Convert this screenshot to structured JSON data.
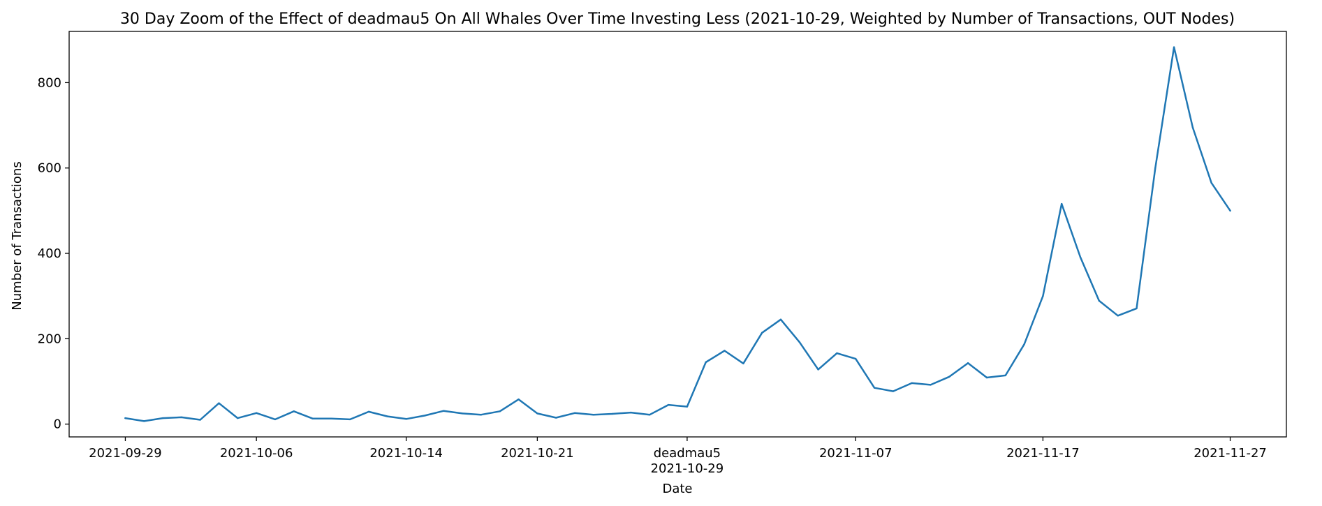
{
  "chart_data": {
    "type": "line",
    "title": "30 Day Zoom of the Effect of deadmau5 On All Whales Over Time Investing Less (2021-10-29, Weighted by Number of Transactions, OUT Nodes)",
    "xlabel": "Date",
    "ylabel": "Number of Transactions",
    "ylim": [
      -30,
      920
    ],
    "xlim": [
      "2021-09-26",
      "2021-11-30"
    ],
    "grid": false,
    "line_color": "#1f77b4",
    "x_ticks": [
      {
        "date": "2021-09-29",
        "label": "2021-09-29"
      },
      {
        "date": "2021-10-06",
        "label": "2021-10-06"
      },
      {
        "date": "2021-10-14",
        "label": "2021-10-14"
      },
      {
        "date": "2021-10-21",
        "label": "2021-10-21"
      },
      {
        "date": "2021-10-29",
        "label": "2021-10-29",
        "extra_label": "deadmau5"
      },
      {
        "date": "2021-11-07",
        "label": "2021-11-07"
      },
      {
        "date": "2021-11-17",
        "label": "2021-11-17"
      },
      {
        "date": "2021-11-27",
        "label": "2021-11-27"
      }
    ],
    "y_ticks": [
      0,
      200,
      400,
      600,
      800
    ],
    "series": [
      {
        "x": [
          "2021-09-29",
          "2021-09-30",
          "2021-10-01",
          "2021-10-02",
          "2021-10-03",
          "2021-10-04",
          "2021-10-05",
          "2021-10-06",
          "2021-10-07",
          "2021-10-08",
          "2021-10-09",
          "2021-10-10",
          "2021-10-11",
          "2021-10-12",
          "2021-10-13",
          "2021-10-14",
          "2021-10-15",
          "2021-10-16",
          "2021-10-17",
          "2021-10-18",
          "2021-10-19",
          "2021-10-20",
          "2021-10-21",
          "2021-10-22",
          "2021-10-23",
          "2021-10-24",
          "2021-10-25",
          "2021-10-26",
          "2021-10-27",
          "2021-10-28",
          "2021-10-29",
          "2021-10-30",
          "2021-10-31",
          "2021-11-01",
          "2021-11-02",
          "2021-11-03",
          "2021-11-04",
          "2021-11-05",
          "2021-11-06",
          "2021-11-07",
          "2021-11-08",
          "2021-11-09",
          "2021-11-10",
          "2021-11-11",
          "2021-11-12",
          "2021-11-13",
          "2021-11-14",
          "2021-11-15",
          "2021-11-16",
          "2021-11-17",
          "2021-11-18",
          "2021-11-19",
          "2021-11-20",
          "2021-11-21",
          "2021-11-22",
          "2021-11-23",
          "2021-11-24",
          "2021-11-25",
          "2021-11-26",
          "2021-11-27"
        ],
        "y": [
          14,
          7,
          14,
          16,
          10,
          49,
          14,
          26,
          11,
          30,
          13,
          13,
          11,
          29,
          18,
          12,
          20,
          31,
          25,
          22,
          30,
          58,
          25,
          15,
          26,
          22,
          24,
          27,
          22,
          45,
          41,
          145,
          172,
          142,
          214,
          245,
          192,
          128,
          166,
          153,
          85,
          77,
          96,
          92,
          111,
          143,
          109,
          114,
          187,
          300,
          516,
          391,
          289,
          254,
          271,
          600,
          883,
          695,
          565,
          500
        ]
      }
    ]
  }
}
